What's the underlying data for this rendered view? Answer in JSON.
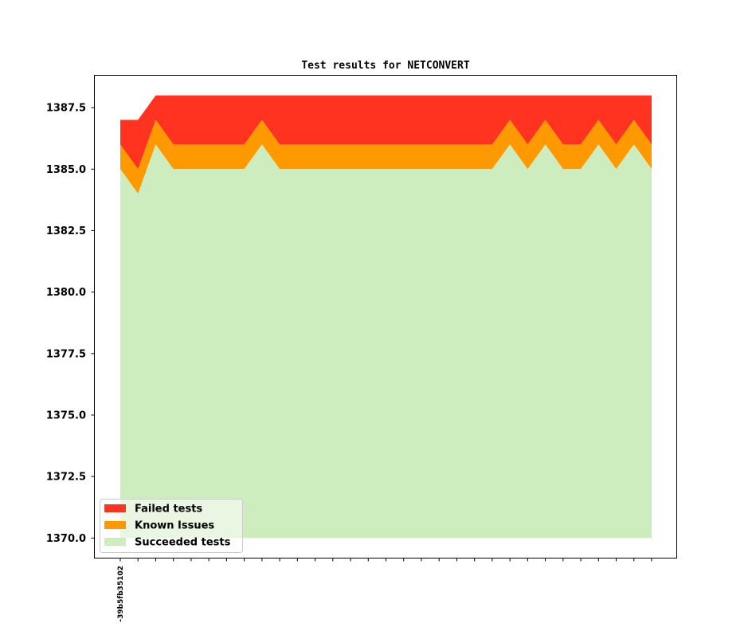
{
  "chart_data": {
    "type": "area",
    "stacked": true,
    "title": "Test results for NETCONVERT",
    "xlabel": "",
    "ylabel": "",
    "ylim": [
      1369.2,
      1388.8
    ],
    "yticks": [
      1370.0,
      1372.5,
      1375.0,
      1377.5,
      1380.0,
      1382.5,
      1385.0,
      1387.5
    ],
    "ytick_labels": [
      "1370.0",
      "1372.5",
      "1375.0",
      "1377.5",
      "1380.0",
      "1382.5",
      "1385.0",
      "1387.5"
    ],
    "baseline": 1370,
    "n_points": 31,
    "x_tick_labels": [
      "-39b5fb35102"
    ],
    "x_labeled_index": 0,
    "legend_position": "lower-left",
    "grid": false,
    "series": [
      {
        "name": "Succeeded tests",
        "color": "#CEEDBF",
        "values": [
          1385,
          1384,
          1386,
          1385,
          1385,
          1385,
          1385,
          1385,
          1386,
          1385,
          1385,
          1385,
          1385,
          1385,
          1385,
          1385,
          1385,
          1385,
          1385,
          1385,
          1385,
          1385,
          1386,
          1385,
          1386,
          1385,
          1385,
          1386,
          1385,
          1386,
          1385
        ]
      },
      {
        "name": "Known Issues",
        "color": "#FF9900",
        "values": [
          1386,
          1385,
          1387,
          1386,
          1386,
          1386,
          1386,
          1386,
          1387,
          1386,
          1386,
          1386,
          1386,
          1386,
          1386,
          1386,
          1386,
          1386,
          1386,
          1386,
          1386,
          1386,
          1387,
          1386,
          1387,
          1386,
          1386,
          1387,
          1386,
          1387,
          1386
        ]
      },
      {
        "name": "Failed tests",
        "color": "#FF331F",
        "values": [
          1387,
          1387,
          1388,
          1388,
          1388,
          1388,
          1388,
          1388,
          1388,
          1388,
          1388,
          1388,
          1388,
          1388,
          1388,
          1388,
          1388,
          1388,
          1388,
          1388,
          1388,
          1388,
          1388,
          1388,
          1388,
          1388,
          1388,
          1388,
          1388,
          1388,
          1388
        ]
      }
    ],
    "legend": [
      {
        "label": "Failed tests",
        "color": "#FF331F"
      },
      {
        "label": "Known Issues",
        "color": "#FF9900"
      },
      {
        "label": "Succeeded tests",
        "color": "#CEEDBF"
      }
    ]
  }
}
